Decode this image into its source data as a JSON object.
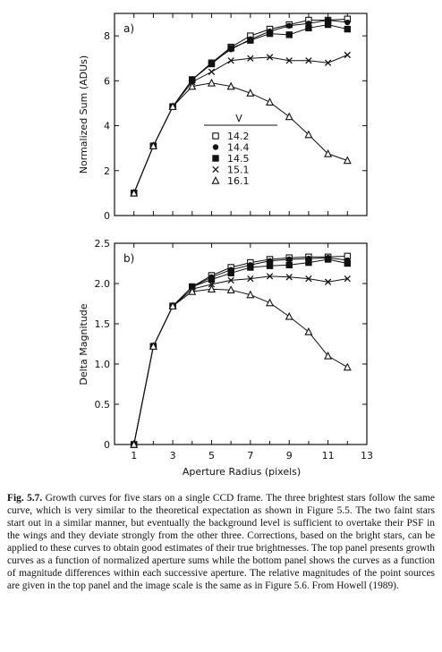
{
  "caption": {
    "label": "Fig. 5.7.",
    "text": "Growth curves for five stars on a single CCD frame. The three brightest stars follow the same curve, which is very similar to the theoretical expectation as shown in Figure 5.5. The two faint stars start out in a similar manner, but eventually the background level is sufficient to overtake their PSF in the wings and they deviate strongly from the other three. Corrections, based on the bright stars, can be applied to these curves to obtain good estimates of their true brightnesses. The top panel presents growth curves as a function of normalized aperture sums while the bottom panel shows the curves as a function of magnitude differences within each successive aperture. The relative magnitudes of the point sources are given in the top panel and the image scale is the same as in Figure 5.6. From Howell (1989)."
  },
  "chart_data": [
    {
      "type": "line",
      "panel_label": "a)",
      "title": "",
      "xlabel": "",
      "ylabel": "Normalized Sum (ADUs)",
      "xlim": [
        0,
        13
      ],
      "ylim": [
        0,
        9
      ],
      "yticks": [
        0,
        2,
        4,
        6,
        8
      ],
      "ytick_labels": [
        "0",
        "2",
        "4",
        "6",
        "8"
      ],
      "xticks": [
        1,
        2,
        3,
        4,
        5,
        6,
        7,
        8,
        9,
        10,
        11,
        12
      ],
      "xtick_labels": [],
      "grid": false,
      "legend": {
        "title": "V",
        "position": "center"
      },
      "x": [
        1,
        2,
        3,
        4,
        5,
        6,
        7,
        8,
        9,
        10,
        11,
        12
      ],
      "series": [
        {
          "name": "14.2",
          "marker": "open-square",
          "values": [
            1.0,
            3.1,
            4.85,
            6.05,
            6.8,
            7.5,
            8.0,
            8.3,
            8.5,
            8.7,
            8.7,
            8.75
          ]
        },
        {
          "name": "14.4",
          "marker": "filled-circle",
          "values": [
            1.0,
            3.1,
            4.85,
            6.05,
            6.8,
            7.4,
            7.85,
            8.2,
            8.45,
            8.55,
            8.7,
            8.6
          ]
        },
        {
          "name": "14.5",
          "marker": "filled-square",
          "values": [
            1.0,
            3.1,
            4.85,
            6.05,
            6.75,
            7.45,
            7.8,
            8.1,
            8.05,
            8.35,
            8.5,
            8.3
          ]
        },
        {
          "name": "15.1",
          "marker": "cross",
          "values": [
            1.0,
            3.1,
            4.85,
            5.95,
            6.4,
            6.9,
            7.0,
            7.05,
            6.9,
            6.9,
            6.8,
            7.15
          ]
        },
        {
          "name": "16.1",
          "marker": "open-triangle",
          "values": [
            1.0,
            3.1,
            4.85,
            5.75,
            5.9,
            5.75,
            5.45,
            5.05,
            4.4,
            3.6,
            2.75,
            2.45
          ]
        }
      ]
    },
    {
      "type": "line",
      "panel_label": "b)",
      "title": "",
      "xlabel": "Aperture Radius (pixels)",
      "ylabel": "Delta Magnitude",
      "xlim": [
        0,
        13
      ],
      "ylim": [
        0,
        2.5
      ],
      "yticks": [
        0,
        0.5,
        1.0,
        1.5,
        2.0,
        2.5
      ],
      "ytick_labels": [
        "0",
        "0.5",
        "1.0",
        "1.5",
        "2.0",
        "2.5"
      ],
      "xticks": [
        1,
        3,
        5,
        7,
        9,
        11,
        13
      ],
      "xtick_labels": [
        "1",
        "3",
        "5",
        "7",
        "9",
        "11",
        "13"
      ],
      "grid": false,
      "x": [
        1,
        2,
        3,
        4,
        5,
        6,
        7,
        8,
        9,
        10,
        11,
        12
      ],
      "series": [
        {
          "name": "14.2",
          "marker": "open-square",
          "values": [
            0.0,
            1.22,
            1.72,
            1.96,
            2.1,
            2.2,
            2.26,
            2.3,
            2.32,
            2.33,
            2.33,
            2.34
          ]
        },
        {
          "name": "14.4",
          "marker": "filled-circle",
          "values": [
            0.0,
            1.22,
            1.72,
            1.96,
            2.08,
            2.17,
            2.23,
            2.28,
            2.3,
            2.31,
            2.32,
            2.29
          ]
        },
        {
          "name": "14.5",
          "marker": "filled-square",
          "values": [
            0.0,
            1.22,
            1.72,
            1.96,
            2.05,
            2.13,
            2.2,
            2.22,
            2.23,
            2.26,
            2.3,
            2.25
          ]
        },
        {
          "name": "15.1",
          "marker": "cross",
          "values": [
            0.0,
            1.22,
            1.72,
            1.93,
            1.99,
            2.04,
            2.06,
            2.09,
            2.08,
            2.06,
            2.02,
            2.06
          ]
        },
        {
          "name": "16.1",
          "marker": "open-triangle",
          "values": [
            0.0,
            1.22,
            1.72,
            1.9,
            1.93,
            1.92,
            1.86,
            1.76,
            1.59,
            1.4,
            1.1,
            0.96
          ]
        }
      ]
    }
  ]
}
